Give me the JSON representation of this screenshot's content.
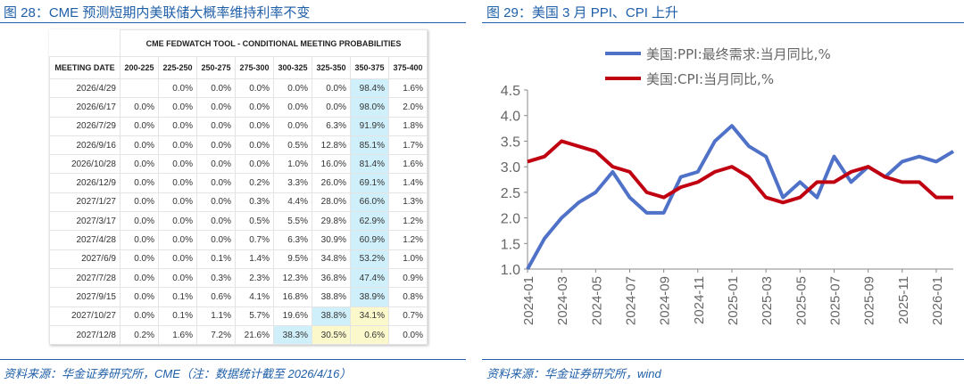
{
  "left": {
    "title": "图 28：CME 预测短期内美联储大概率维持利率不变",
    "source": "资料来源：华金证券研究所，CME（注：数据统计截至 2026/4/16）",
    "table": {
      "title": "CME FEDWATCH TOOL - CONDITIONAL MEETING PROBABILITIES",
      "headers": [
        "MEETING DATE",
        "200-225",
        "225-250",
        "250-275",
        "275-300",
        "300-325",
        "325-350",
        "350-375",
        "375-400"
      ],
      "rows": [
        [
          "2026/4/29",
          "",
          "0.0%",
          "0.0%",
          "0.0%",
          "0.0%",
          "0.0%",
          "98.4%",
          "1.6%"
        ],
        [
          "2026/6/17",
          "0.0%",
          "0.0%",
          "0.0%",
          "0.0%",
          "0.0%",
          "0.0%",
          "98.0%",
          "2.0%"
        ],
        [
          "2026/7/29",
          "0.0%",
          "0.0%",
          "0.0%",
          "0.0%",
          "0.0%",
          "6.3%",
          "91.9%",
          "1.8%"
        ],
        [
          "2026/9/16",
          "0.0%",
          "0.0%",
          "0.0%",
          "0.0%",
          "0.5%",
          "12.8%",
          "85.1%",
          "1.7%"
        ],
        [
          "2026/10/28",
          "0.0%",
          "0.0%",
          "0.0%",
          "0.0%",
          "1.0%",
          "16.0%",
          "81.4%",
          "1.6%"
        ],
        [
          "2026/12/9",
          "0.0%",
          "0.0%",
          "0.0%",
          "0.2%",
          "3.3%",
          "26.0%",
          "69.1%",
          "1.4%"
        ],
        [
          "2027/1/27",
          "0.0%",
          "0.0%",
          "0.0%",
          "0.3%",
          "4.4%",
          "28.0%",
          "66.0%",
          "1.3%"
        ],
        [
          "2027/3/17",
          "0.0%",
          "0.0%",
          "0.0%",
          "0.5%",
          "5.5%",
          "29.8%",
          "62.9%",
          "1.2%"
        ],
        [
          "2027/4/28",
          "0.0%",
          "0.0%",
          "0.0%",
          "0.7%",
          "6.3%",
          "30.9%",
          "60.9%",
          "1.2%"
        ],
        [
          "2027/6/9",
          "0.0%",
          "0.0%",
          "0.1%",
          "1.4%",
          "9.5%",
          "34.8%",
          "53.2%",
          "1.0%"
        ],
        [
          "2027/7/28",
          "0.0%",
          "0.0%",
          "0.3%",
          "2.3%",
          "12.3%",
          "36.8%",
          "47.4%",
          "0.9%"
        ],
        [
          "2027/9/15",
          "0.0%",
          "0.1%",
          "0.6%",
          "4.1%",
          "16.8%",
          "38.8%",
          "38.9%",
          "0.8%"
        ],
        [
          "2027/10/27",
          "0.0%",
          "0.1%",
          "1.1%",
          "5.7%",
          "19.6%",
          "38.8%",
          "34.1%",
          "0.7%"
        ],
        [
          "2027/12/8",
          "0.2%",
          "1.6%",
          "7.2%",
          "21.6%",
          "38.3%",
          "30.5%",
          "0.6%",
          "0.0%"
        ]
      ],
      "highlight_colors": {
        "blue": "#cfeffa",
        "yellow": "#fbf8cc"
      }
    }
  },
  "right": {
    "title": "图 29：美国 3 月 PPI、CPI 上升",
    "source": "资料来源：华金证券研究所，wind"
  },
  "chart_data": {
    "type": "line",
    "ylim": [
      1.0,
      4.5
    ],
    "yticks": [
      "1.0",
      "1.5",
      "2.0",
      "2.5",
      "3.0",
      "3.5",
      "4.0",
      "4.5"
    ],
    "xticks": [
      "2024-01",
      "2024-03",
      "2024-05",
      "2024-07",
      "2024-09",
      "2024-11",
      "2025-01",
      "2025-03",
      "2025-05",
      "2025-07",
      "2025-09",
      "2025-11",
      "2026-01"
    ],
    "x": [
      "2024-01",
      "2024-02",
      "2024-03",
      "2024-04",
      "2024-05",
      "2024-06",
      "2024-07",
      "2024-08",
      "2024-09",
      "2024-10",
      "2024-11",
      "2024-12",
      "2025-01",
      "2025-02",
      "2025-03",
      "2025-04",
      "2025-05",
      "2025-06",
      "2025-07",
      "2025-08",
      "2025-09",
      "2025-10",
      "2025-11",
      "2025-12",
      "2026-01",
      "2026-02"
    ],
    "legend": "top",
    "grid": false,
    "series": [
      {
        "name": "美国:PPI:最终需求:当月同比,%",
        "color": "#4f72c8",
        "values": [
          1.0,
          1.6,
          2.0,
          2.3,
          2.5,
          2.9,
          2.4,
          2.1,
          2.1,
          2.8,
          2.9,
          3.5,
          3.8,
          3.4,
          3.2,
          2.4,
          2.7,
          2.4,
          3.2,
          2.7,
          3.0,
          2.8,
          3.1,
          3.2,
          3.1,
          3.3
        ]
      },
      {
        "name": "美国:CPI:当月同比,%",
        "color": "#c00010",
        "values": [
          3.1,
          3.2,
          3.5,
          3.4,
          3.3,
          3.0,
          2.9,
          2.5,
          2.4,
          2.6,
          2.7,
          2.9,
          3.0,
          2.8,
          2.4,
          2.3,
          2.4,
          2.7,
          2.7,
          2.9,
          3.0,
          2.8,
          2.7,
          2.7,
          2.4,
          2.4
        ]
      }
    ]
  }
}
